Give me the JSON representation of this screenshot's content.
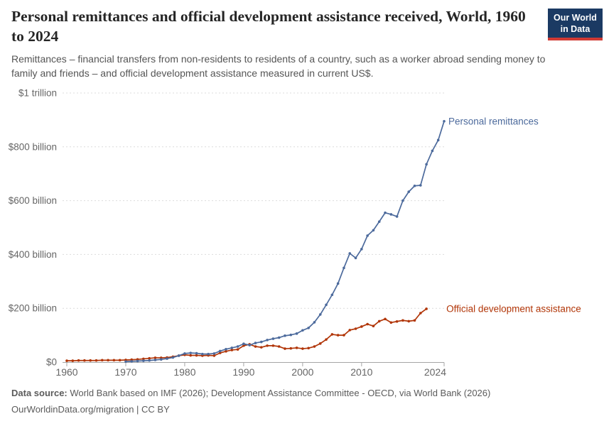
{
  "logo": {
    "line1": "Our World",
    "line2": "in Data",
    "bg": "#1b3a63",
    "accent": "#d13a34"
  },
  "chart_data": {
    "type": "line",
    "title": "Personal remittances and official development assistance received, World, 1960 to 2024",
    "subtitle": "Remittances – financial transfers from non-residents to residents of a country, such as a worker abroad sending money to family and friends – and official development assistance measured in current US$.",
    "unit": "current US$ (billions)",
    "xlim": [
      1960,
      2024
    ],
    "ylim": [
      0,
      1000
    ],
    "grid": true,
    "legend_position": "end-of-line labels",
    "x_ticks": [
      {
        "value": 1960,
        "label": "1960"
      },
      {
        "value": 1970,
        "label": "1970"
      },
      {
        "value": 1980,
        "label": "1980"
      },
      {
        "value": 1990,
        "label": "1990"
      },
      {
        "value": 2000,
        "label": "2000"
      },
      {
        "value": 2010,
        "label": "2010"
      },
      {
        "value": 2024,
        "label": "2024"
      }
    ],
    "y_ticks": [
      {
        "value": 0,
        "label": "$0"
      },
      {
        "value": 200,
        "label": "$200 billion"
      },
      {
        "value": 400,
        "label": "$400 billion"
      },
      {
        "value": 600,
        "label": "$600 billion"
      },
      {
        "value": 800,
        "label": "$800 billion"
      },
      {
        "value": 1000,
        "label": "$1 trillion"
      }
    ],
    "series": [
      {
        "name": "Official development assistance",
        "color": "#B13507",
        "label_dx": 28,
        "years": [
          1960,
          1961,
          1962,
          1963,
          1964,
          1965,
          1966,
          1967,
          1968,
          1969,
          1970,
          1971,
          1972,
          1973,
          1974,
          1975,
          1976,
          1977,
          1978,
          1979,
          1980,
          1981,
          1982,
          1983,
          1984,
          1985,
          1986,
          1987,
          1988,
          1989,
          1990,
          1991,
          1992,
          1993,
          1994,
          1995,
          1996,
          1997,
          1998,
          1999,
          2000,
          2001,
          2002,
          2003,
          2004,
          2005,
          2006,
          2007,
          2008,
          2009,
          2010,
          2011,
          2012,
          2013,
          2014,
          2015,
          2016,
          2017,
          2018,
          2019,
          2020,
          2021
        ],
        "values": [
          5,
          5,
          6,
          6,
          6,
          6,
          7,
          7,
          7,
          7,
          8,
          9,
          10,
          12,
          14,
          16,
          16,
          17,
          20,
          24,
          27,
          25,
          25,
          24,
          25,
          24,
          34,
          40,
          45,
          47,
          61,
          66,
          58,
          55,
          61,
          61,
          58,
          50,
          51,
          53,
          50,
          52,
          58,
          69,
          84,
          103,
          100,
          100,
          119,
          124,
          132,
          141,
          134,
          152,
          160,
          147,
          151,
          155,
          152,
          155,
          182,
          198
        ]
      },
      {
        "name": "Personal remittances",
        "color": "#4C6A9C",
        "label_dx": 6,
        "years": [
          1970,
          1971,
          1972,
          1973,
          1974,
          1975,
          1976,
          1977,
          1978,
          1979,
          1980,
          1981,
          1982,
          1983,
          1984,
          1985,
          1986,
          1987,
          1988,
          1989,
          1990,
          1991,
          1992,
          1993,
          1994,
          1995,
          1996,
          1997,
          1998,
          1999,
          2000,
          2001,
          2002,
          2003,
          2004,
          2005,
          2006,
          2007,
          2008,
          2009,
          2010,
          2011,
          2012,
          2013,
          2014,
          2015,
          2016,
          2017,
          2018,
          2019,
          2020,
          2021,
          2022,
          2023,
          2024
        ],
        "values": [
          2,
          3,
          4,
          5,
          6,
          8,
          10,
          13,
          17,
          24,
          32,
          34,
          33,
          30,
          30,
          32,
          41,
          48,
          53,
          58,
          68,
          63,
          71,
          75,
          82,
          87,
          91,
          98,
          101,
          106,
          118,
          127,
          148,
          177,
          213,
          250,
          292,
          350,
          404,
          387,
          420,
          470,
          490,
          522,
          555,
          549,
          541,
          600,
          633,
          655,
          657,
          735,
          785,
          825,
          895
        ]
      }
    ]
  },
  "footer": {
    "datasource_label": "Data source:",
    "datasource_text": " World Bank based on IMF (2026); Development Assistance Committee - OECD, via World Bank (2026)",
    "license_line": "OurWorldinData.org/migration | CC BY"
  }
}
